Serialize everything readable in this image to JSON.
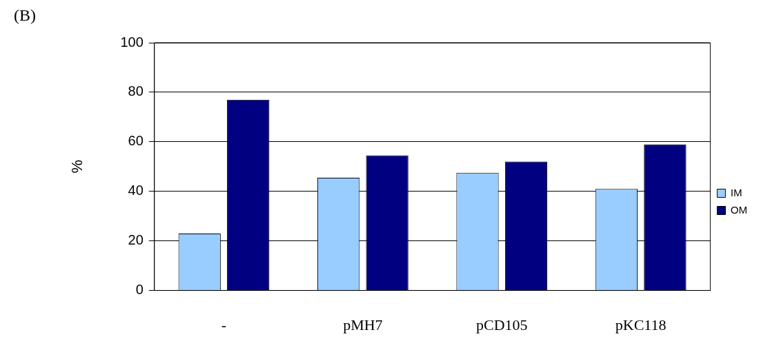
{
  "chart_data": {
    "type": "bar",
    "annotations": [
      "(B)"
    ],
    "ylabel": "%",
    "categories": [
      "-",
      "pMH7",
      "pCD105",
      "pKC118"
    ],
    "series": [
      {
        "name": "IM",
        "color": "#99ccff",
        "values": [
          23,
          45.5,
          47.5,
          41
        ]
      },
      {
        "name": "OM",
        "color": "#000080",
        "values": [
          77,
          54.5,
          52,
          59
        ]
      }
    ],
    "ylim": [
      0,
      100
    ],
    "yticks": [
      0,
      20,
      40,
      60,
      80,
      100
    ],
    "grid": "y",
    "legend": "right"
  }
}
